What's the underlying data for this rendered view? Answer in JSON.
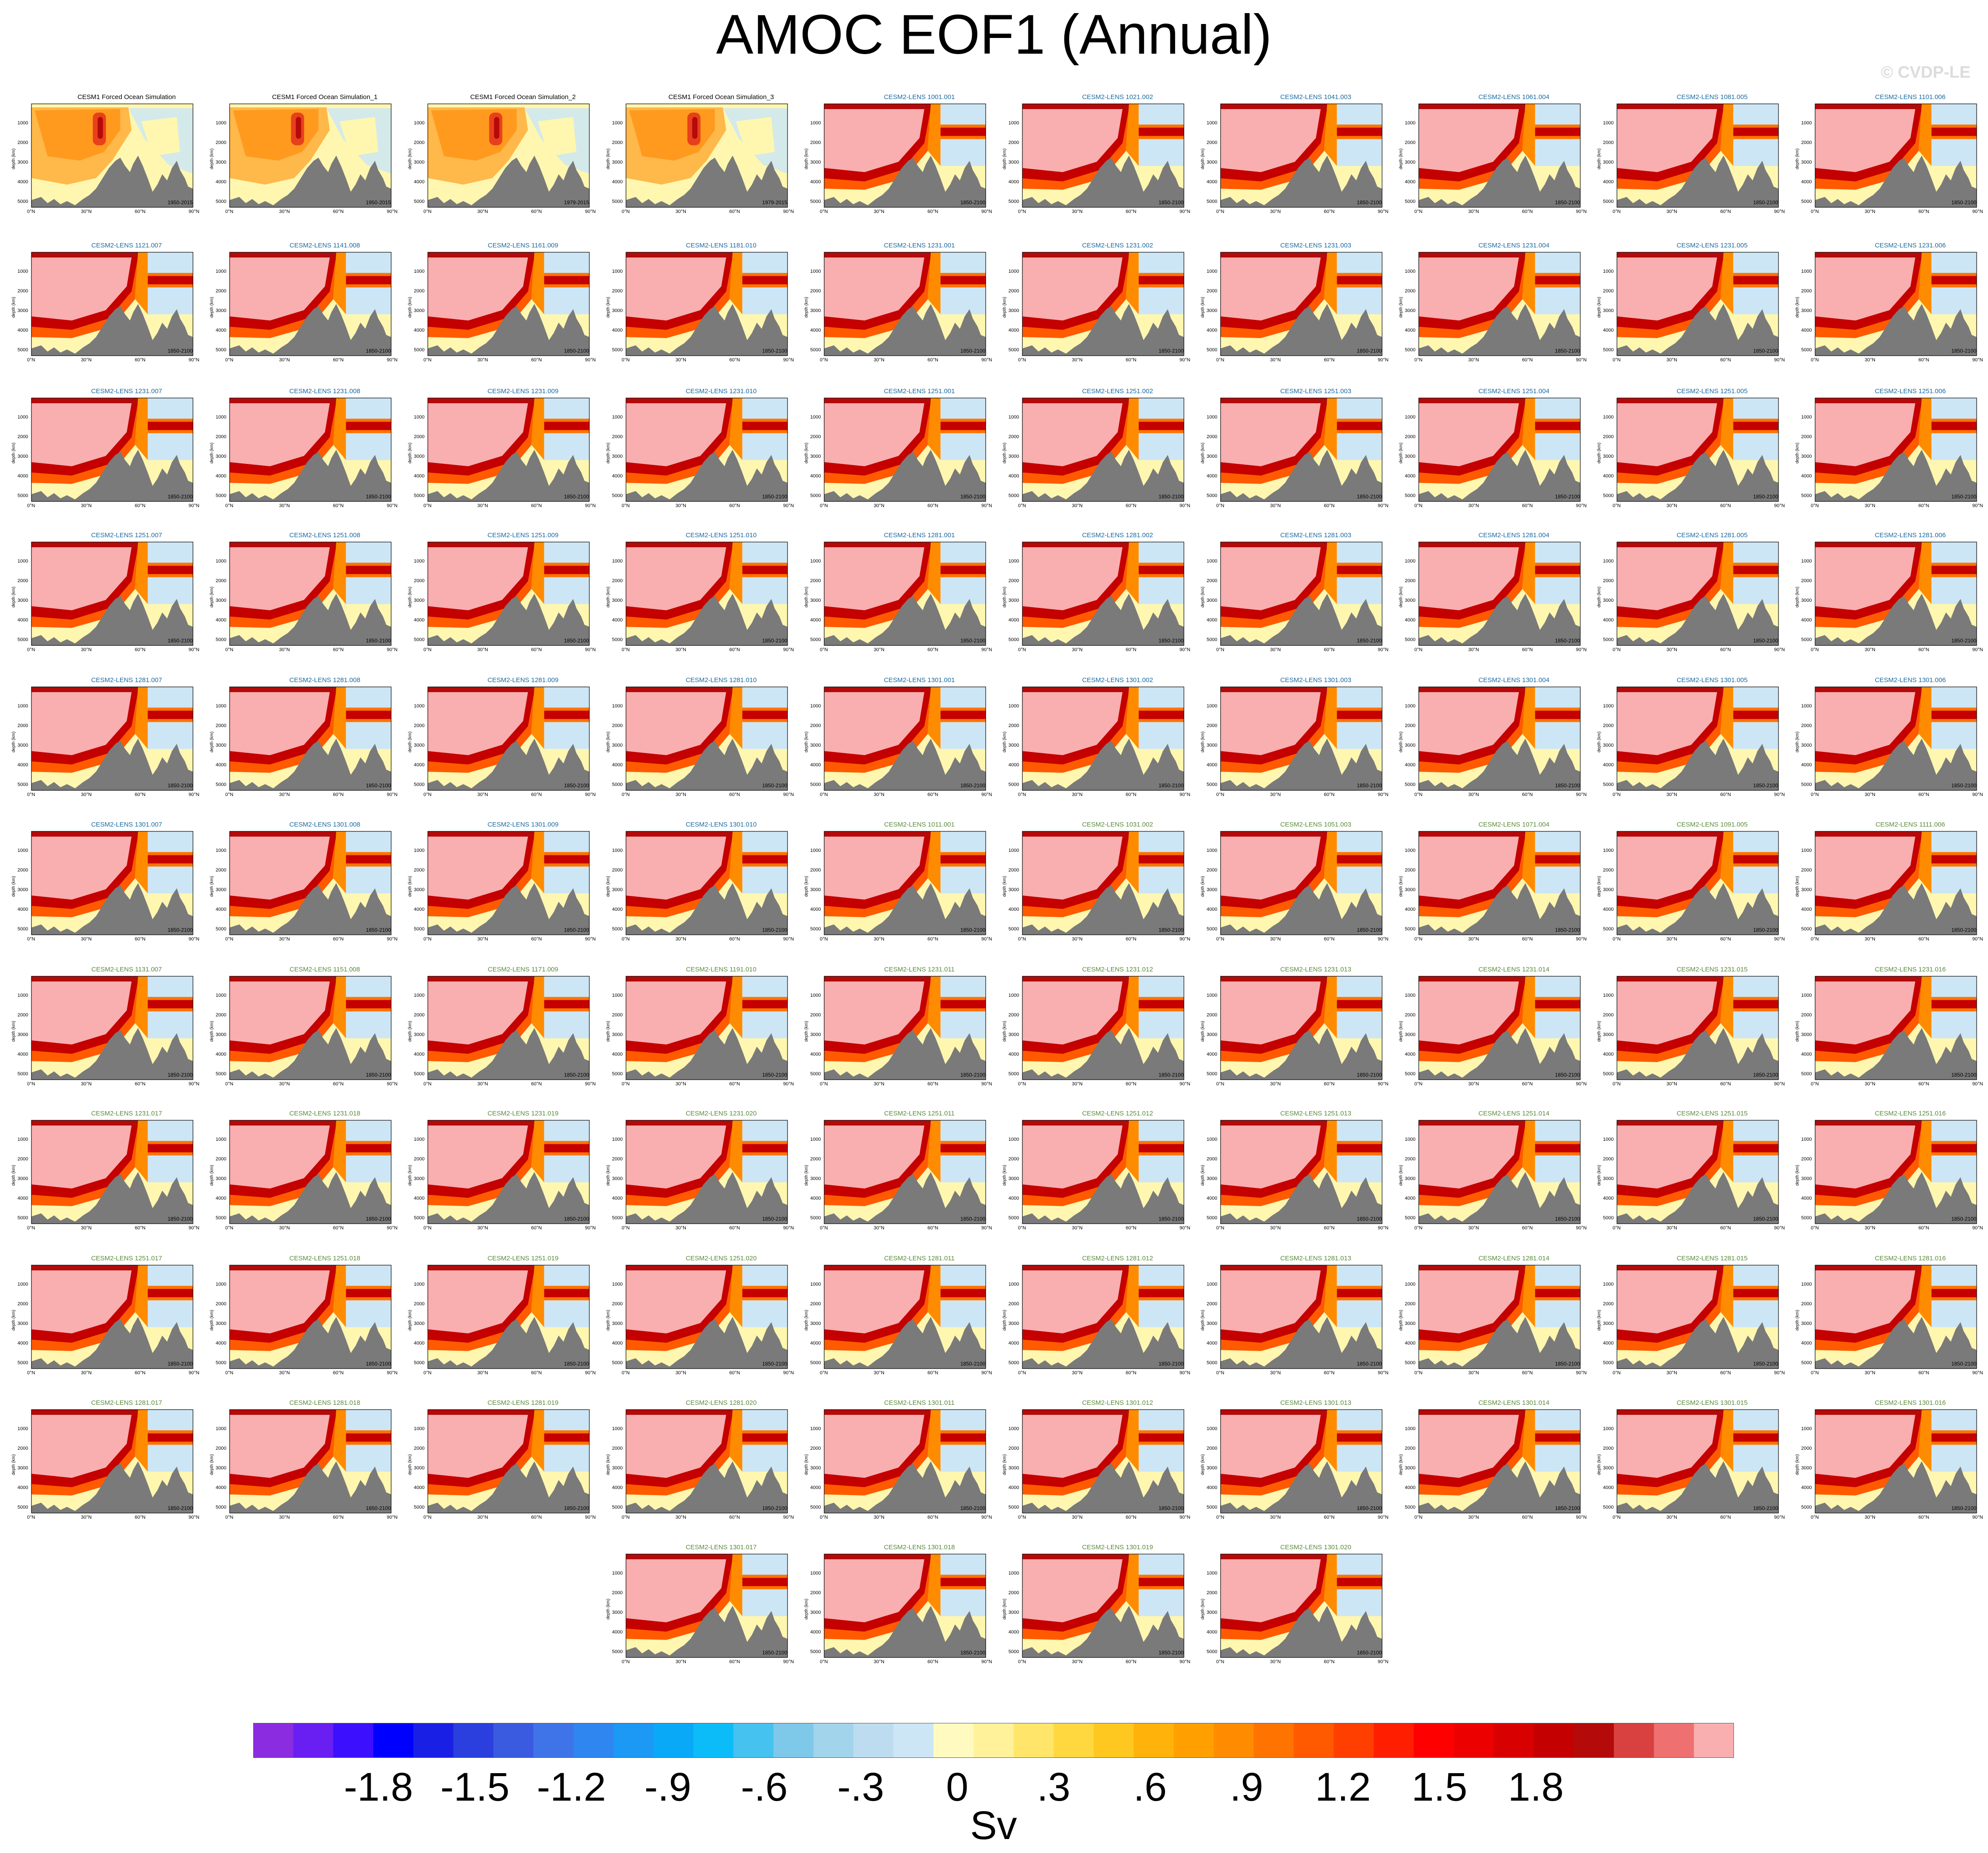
{
  "title": "AMOC EOF1 (Annual)",
  "watermark": "© CVDP-LE",
  "units": "Sv",
  "colors": {
    "forced_title": "#000000",
    "lens_title_cmip": "#1a6aa0",
    "lens_title_smbb": "#5a8a3a",
    "land": "#7a7a7a",
    "background_fill": "#fff7b0",
    "saturated_fill": "#f9aeb0"
  },
  "chart_data": {
    "type": "heatmap",
    "description_axes": {
      "x_ticks": [
        "0°N",
        "30°N",
        "60°N",
        "90°N"
      ],
      "y_ticks": [
        "1000",
        "2000",
        "3000",
        "4000",
        "5000"
      ],
      "ylabel": "depth (km)"
    },
    "colorbar": {
      "tick_labels": [
        "-1.8",
        "-1.5",
        "-1.2",
        "-.9",
        "-.6",
        "-.3",
        "0",
        ".3",
        ".6",
        ".9",
        "1.2",
        "1.5",
        "1.8"
      ],
      "colors": [
        "#8b2ce0",
        "#6a1ff2",
        "#3c10ff",
        "#0000ff",
        "#1a1fe6",
        "#2a3fdd",
        "#3a5ae0",
        "#3f74e8",
        "#2f86f0",
        "#1c98f5",
        "#0aa9f7",
        "#0cbcf8",
        "#45c2f0",
        "#7ec8ea",
        "#a2d4ec",
        "#bddcf0",
        "#cde6f5",
        "#fffbc0",
        "#fff29a",
        "#ffe66a",
        "#ffd840",
        "#ffc820",
        "#ffb30a",
        "#ffa000",
        "#ff8c00",
        "#ff7300",
        "#ff5a00",
        "#ff3f00",
        "#ff1e00",
        "#ff0000",
        "#ec0000",
        "#d80000",
        "#c40000",
        "#b40a0a",
        "#d94040",
        "#ee7070",
        "#f9aeb0"
      ]
    },
    "panels": [
      {
        "title": "CESM1 Forced Ocean Simulation",
        "years": "1950-2015",
        "style": "forced"
      },
      {
        "title": "CESM1 Forced Ocean Simulation_1",
        "years": "1950-2015",
        "style": "forced"
      },
      {
        "title": "CESM1 Forced Ocean Simulation_2",
        "years": "1979-2015",
        "style": "forced"
      },
      {
        "title": "CESM1 Forced Ocean Simulation_3",
        "years": "1979-2015",
        "style": "forced"
      },
      {
        "title": "CESM2-LENS 1001.001",
        "years": "1850-2100",
        "style": "cmip"
      },
      {
        "title": "CESM2-LENS 1021.002",
        "years": "1850-2100",
        "style": "cmip"
      },
      {
        "title": "CESM2-LENS 1041.003",
        "years": "1850-2100",
        "style": "cmip"
      },
      {
        "title": "CESM2-LENS 1061.004",
        "years": "1850-2100",
        "style": "cmip"
      },
      {
        "title": "CESM2-LENS 1081.005",
        "years": "1850-2100",
        "style": "cmip"
      },
      {
        "title": "CESM2-LENS 1101.006",
        "years": "1850-2100",
        "style": "cmip"
      },
      {
        "title": "CESM2-LENS 1121.007",
        "years": "1850-2100",
        "style": "cmip"
      },
      {
        "title": "CESM2-LENS 1141.008",
        "years": "1850-2100",
        "style": "cmip"
      },
      {
        "title": "CESM2-LENS 1161.009",
        "years": "1850-2100",
        "style": "cmip"
      },
      {
        "title": "CESM2-LENS 1181.010",
        "years": "1850-2100",
        "style": "cmip"
      },
      {
        "title": "CESM2-LENS 1231.001",
        "years": "1850-2100",
        "style": "cmip"
      },
      {
        "title": "CESM2-LENS 1231.002",
        "years": "1850-2100",
        "style": "cmip"
      },
      {
        "title": "CESM2-LENS 1231.003",
        "years": "1850-2100",
        "style": "cmip"
      },
      {
        "title": "CESM2-LENS 1231.004",
        "years": "1850-2100",
        "style": "cmip"
      },
      {
        "title": "CESM2-LENS 1231.005",
        "years": "1850-2100",
        "style": "cmip"
      },
      {
        "title": "CESM2-LENS 1231.006",
        "years": "1850-2100",
        "style": "cmip"
      },
      {
        "title": "CESM2-LENS 1231.007",
        "years": "1850-2100",
        "style": "cmip"
      },
      {
        "title": "CESM2-LENS 1231.008",
        "years": "1850-2100",
        "style": "cmip"
      },
      {
        "title": "CESM2-LENS 1231.009",
        "years": "1850-2100",
        "style": "cmip"
      },
      {
        "title": "CESM2-LENS 1231.010",
        "years": "1850-2100",
        "style": "cmip"
      },
      {
        "title": "CESM2-LENS 1251.001",
        "years": "1850-2100",
        "style": "cmip"
      },
      {
        "title": "CESM2-LENS 1251.002",
        "years": "1850-2100",
        "style": "cmip"
      },
      {
        "title": "CESM2-LENS 1251.003",
        "years": "1850-2100",
        "style": "cmip"
      },
      {
        "title": "CESM2-LENS 1251.004",
        "years": "1850-2100",
        "style": "cmip"
      },
      {
        "title": "CESM2-LENS 1251.005",
        "years": "1850-2100",
        "style": "cmip"
      },
      {
        "title": "CESM2-LENS 1251.006",
        "years": "1850-2100",
        "style": "cmip"
      },
      {
        "title": "CESM2-LENS 1251.007",
        "years": "1850-2100",
        "style": "cmip"
      },
      {
        "title": "CESM2-LENS 1251.008",
        "years": "1850-2100",
        "style": "cmip"
      },
      {
        "title": "CESM2-LENS 1251.009",
        "years": "1850-2100",
        "style": "cmip"
      },
      {
        "title": "CESM2-LENS 1251.010",
        "years": "1850-2100",
        "style": "cmip"
      },
      {
        "title": "CESM2-LENS 1281.001",
        "years": "1850-2100",
        "style": "cmip"
      },
      {
        "title": "CESM2-LENS 1281.002",
        "years": "1850-2100",
        "style": "cmip"
      },
      {
        "title": "CESM2-LENS 1281.003",
        "years": "1850-2100",
        "style": "cmip"
      },
      {
        "title": "CESM2-LENS 1281.004",
        "years": "1850-2100",
        "style": "cmip"
      },
      {
        "title": "CESM2-LENS 1281.005",
        "years": "1850-2100",
        "style": "cmip"
      },
      {
        "title": "CESM2-LENS 1281.006",
        "years": "1850-2100",
        "style": "cmip"
      },
      {
        "title": "CESM2-LENS 1281.007",
        "years": "1850-2100",
        "style": "cmip"
      },
      {
        "title": "CESM2-LENS 1281.008",
        "years": "1850-2100",
        "style": "cmip"
      },
      {
        "title": "CESM2-LENS 1281.009",
        "years": "1850-2100",
        "style": "cmip"
      },
      {
        "title": "CESM2-LENS 1281.010",
        "years": "1850-2100",
        "style": "cmip"
      },
      {
        "title": "CESM2-LENS 1301.001",
        "years": "1850-2100",
        "style": "cmip"
      },
      {
        "title": "CESM2-LENS 1301.002",
        "years": "1850-2100",
        "style": "cmip"
      },
      {
        "title": "CESM2-LENS 1301.003",
        "years": "1850-2100",
        "style": "cmip"
      },
      {
        "title": "CESM2-LENS 1301.004",
        "years": "1850-2100",
        "style": "cmip"
      },
      {
        "title": "CESM2-LENS 1301.005",
        "years": "1850-2100",
        "style": "cmip"
      },
      {
        "title": "CESM2-LENS 1301.006",
        "years": "1850-2100",
        "style": "cmip"
      },
      {
        "title": "CESM2-LENS 1301.007",
        "years": "1850-2100",
        "style": "cmip"
      },
      {
        "title": "CESM2-LENS 1301.008",
        "years": "1850-2100",
        "style": "cmip"
      },
      {
        "title": "CESM2-LENS 1301.009",
        "years": "1850-2100",
        "style": "cmip"
      },
      {
        "title": "CESM2-LENS 1301.010",
        "years": "1850-2100",
        "style": "cmip"
      },
      {
        "title": "CESM2-LENS 1011.001",
        "years": "1850-2100",
        "style": "smbb"
      },
      {
        "title": "CESM2-LENS 1031.002",
        "years": "1850-2100",
        "style": "smbb"
      },
      {
        "title": "CESM2-LENS 1051.003",
        "years": "1850-2100",
        "style": "smbb"
      },
      {
        "title": "CESM2-LENS 1071.004",
        "years": "1850-2100",
        "style": "smbb"
      },
      {
        "title": "CESM2-LENS 1091.005",
        "years": "1850-2100",
        "style": "smbb"
      },
      {
        "title": "CESM2-LENS 1111.006",
        "years": "1850-2100",
        "style": "smbb"
      },
      {
        "title": "CESM2-LENS 1131.007",
        "years": "1850-2100",
        "style": "smbb"
      },
      {
        "title": "CESM2-LENS 1151.008",
        "years": "1850-2100",
        "style": "smbb"
      },
      {
        "title": "CESM2-LENS 1171.009",
        "years": "1850-2100",
        "style": "smbb"
      },
      {
        "title": "CESM2-LENS 1191.010",
        "years": "1850-2100",
        "style": "smbb"
      },
      {
        "title": "CESM2-LENS 1231.011",
        "years": "1850-2100",
        "style": "smbb"
      },
      {
        "title": "CESM2-LENS 1231.012",
        "years": "1850-2100",
        "style": "smbb"
      },
      {
        "title": "CESM2-LENS 1231.013",
        "years": "1850-2100",
        "style": "smbb"
      },
      {
        "title": "CESM2-LENS 1231.014",
        "years": "1850-2100",
        "style": "smbb"
      },
      {
        "title": "CESM2-LENS 1231.015",
        "years": "1850-2100",
        "style": "smbb"
      },
      {
        "title": "CESM2-LENS 1231.016",
        "years": "1850-2100",
        "style": "smbb"
      },
      {
        "title": "CESM2-LENS 1231.017",
        "years": "1850-2100",
        "style": "smbb"
      },
      {
        "title": "CESM2-LENS 1231.018",
        "years": "1850-2100",
        "style": "smbb"
      },
      {
        "title": "CESM2-LENS 1231.019",
        "years": "1850-2100",
        "style": "smbb"
      },
      {
        "title": "CESM2-LENS 1231.020",
        "years": "1850-2100",
        "style": "smbb"
      },
      {
        "title": "CESM2-LENS 1251.011",
        "years": "1850-2100",
        "style": "smbb"
      },
      {
        "title": "CESM2-LENS 1251.012",
        "years": "1850-2100",
        "style": "smbb"
      },
      {
        "title": "CESM2-LENS 1251.013",
        "years": "1850-2100",
        "style": "smbb"
      },
      {
        "title": "CESM2-LENS 1251.014",
        "years": "1850-2100",
        "style": "smbb"
      },
      {
        "title": "CESM2-LENS 1251.015",
        "years": "1850-2100",
        "style": "smbb"
      },
      {
        "title": "CESM2-LENS 1251.016",
        "years": "1850-2100",
        "style": "smbb"
      },
      {
        "title": "CESM2-LENS 1251.017",
        "years": "1850-2100",
        "style": "smbb"
      },
      {
        "title": "CESM2-LENS 1251.018",
        "years": "1850-2100",
        "style": "smbb"
      },
      {
        "title": "CESM2-LENS 1251.019",
        "years": "1850-2100",
        "style": "smbb"
      },
      {
        "title": "CESM2-LENS 1251.020",
        "years": "1850-2100",
        "style": "smbb"
      },
      {
        "title": "CESM2-LENS 1281.011",
        "years": "1850-2100",
        "style": "smbb"
      },
      {
        "title": "CESM2-LENS 1281.012",
        "years": "1850-2100",
        "style": "smbb"
      },
      {
        "title": "CESM2-LENS 1281.013",
        "years": "1850-2100",
        "style": "smbb"
      },
      {
        "title": "CESM2-LENS 1281.014",
        "years": "1850-2100",
        "style": "smbb"
      },
      {
        "title": "CESM2-LENS 1281.015",
        "years": "1850-2100",
        "style": "smbb"
      },
      {
        "title": "CESM2-LENS 1281.016",
        "years": "1850-2100",
        "style": "smbb"
      },
      {
        "title": "CESM2-LENS 1281.017",
        "years": "1850-2100",
        "style": "smbb"
      },
      {
        "title": "CESM2-LENS 1281.018",
        "years": "1850-2100",
        "style": "smbb"
      },
      {
        "title": "CESM2-LENS 1281.019",
        "years": "1850-2100",
        "style": "smbb"
      },
      {
        "title": "CESM2-LENS 1281.020",
        "years": "1850-2100",
        "style": "smbb"
      },
      {
        "title": "CESM2-LENS 1301.011",
        "years": "1850-2100",
        "style": "smbb"
      },
      {
        "title": "CESM2-LENS 1301.012",
        "years": "1850-2100",
        "style": "smbb"
      },
      {
        "title": "CESM2-LENS 1301.013",
        "years": "1850-2100",
        "style": "smbb"
      },
      {
        "title": "CESM2-LENS 1301.014",
        "years": "1850-2100",
        "style": "smbb"
      },
      {
        "title": "CESM2-LENS 1301.015",
        "years": "1850-2100",
        "style": "smbb"
      },
      {
        "title": "CESM2-LENS 1301.016",
        "years": "1850-2100",
        "style": "smbb"
      },
      {
        "title": "CESM2-LENS 1301.017",
        "years": "1850-2100",
        "style": "smbb"
      },
      {
        "title": "CESM2-LENS 1301.018",
        "years": "1850-2100",
        "style": "smbb"
      },
      {
        "title": "CESM2-LENS 1301.019",
        "years": "1850-2100",
        "style": "smbb"
      },
      {
        "title": "CESM2-LENS 1301.020",
        "years": "1850-2100",
        "style": "smbb"
      }
    ]
  }
}
